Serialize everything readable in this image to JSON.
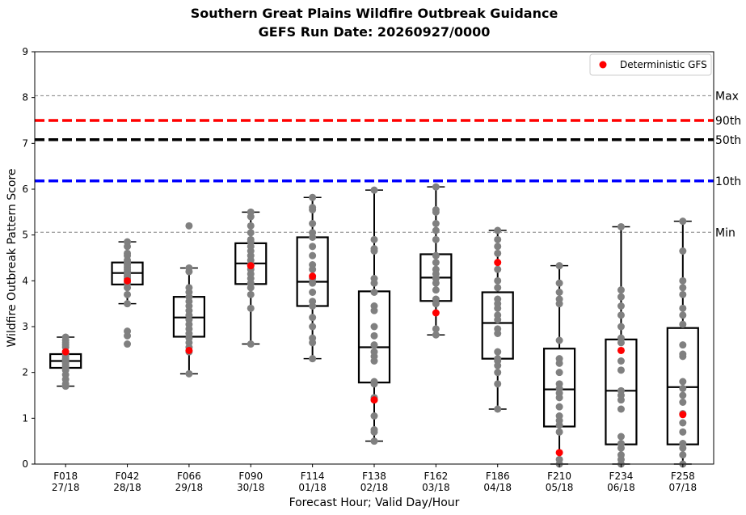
{
  "chart_data": {
    "type": "box",
    "title": "Southern Great Plains Wildfire Outbreak Guidance",
    "subtitle": "GEFS Run Date: 20260927/0000",
    "xlabel": "Forecast Hour; Valid Day/Hour",
    "ylabel": "Wildfire Outbreak Pattern Score",
    "ylim": [
      0,
      9
    ],
    "yticks": [
      0,
      1,
      2,
      3,
      4,
      5,
      6,
      7,
      8,
      9
    ],
    "categories": [
      {
        "hour": "F018",
        "valid": "27/18"
      },
      {
        "hour": "F042",
        "valid": "28/18"
      },
      {
        "hour": "F066",
        "valid": "29/18"
      },
      {
        "hour": "F090",
        "valid": "30/18"
      },
      {
        "hour": "F114",
        "valid": "01/18"
      },
      {
        "hour": "F138",
        "valid": "02/18"
      },
      {
        "hour": "F162",
        "valid": "03/18"
      },
      {
        "hour": "F186",
        "valid": "04/18"
      },
      {
        "hour": "F210",
        "valid": "05/18"
      },
      {
        "hour": "F234",
        "valid": "06/18"
      },
      {
        "hour": "F258",
        "valid": "07/18"
      }
    ],
    "boxes": [
      {
        "q1": 2.1,
        "median": 2.25,
        "q3": 2.4,
        "whisker_low": 1.7,
        "whisker_high": 2.77
      },
      {
        "q1": 3.92,
        "median": 4.17,
        "q3": 4.4,
        "whisker_low": 3.5,
        "whisker_high": 4.85
      },
      {
        "q1": 2.78,
        "median": 3.2,
        "q3": 3.65,
        "whisker_low": 1.97,
        "whisker_high": 4.28
      },
      {
        "q1": 3.93,
        "median": 4.38,
        "q3": 4.82,
        "whisker_low": 2.62,
        "whisker_high": 5.5
      },
      {
        "q1": 3.45,
        "median": 3.98,
        "q3": 4.95,
        "whisker_low": 2.3,
        "whisker_high": 5.82
      },
      {
        "q1": 1.78,
        "median": 2.55,
        "q3": 3.77,
        "whisker_low": 0.5,
        "whisker_high": 5.98
      },
      {
        "q1": 3.56,
        "median": 4.07,
        "q3": 4.58,
        "whisker_low": 2.82,
        "whisker_high": 6.05
      },
      {
        "q1": 2.3,
        "median": 3.08,
        "q3": 3.75,
        "whisker_low": 1.2,
        "whisker_high": 5.1
      },
      {
        "q1": 0.82,
        "median": 1.63,
        "q3": 2.52,
        "whisker_low": 0.0,
        "whisker_high": 4.33
      },
      {
        "q1": 0.43,
        "median": 1.6,
        "q3": 2.72,
        "whisker_low": 0.0,
        "whisker_high": 5.18
      },
      {
        "q1": 0.43,
        "median": 1.68,
        "q3": 2.97,
        "whisker_low": 0.0,
        "whisker_high": 5.3
      }
    ],
    "members": [
      [
        1.7,
        1.75,
        1.85,
        1.95,
        2.05,
        2.1,
        2.15,
        2.2,
        2.22,
        2.25,
        2.28,
        2.3,
        2.35,
        2.4,
        2.45,
        2.55,
        2.6,
        2.65,
        2.7,
        2.77
      ],
      [
        2.62,
        2.8,
        2.9,
        3.5,
        3.7,
        3.85,
        3.95,
        4.05,
        4.1,
        4.15,
        4.2,
        4.25,
        4.3,
        4.35,
        4.4,
        4.45,
        4.55,
        4.6,
        4.75,
        4.85
      ],
      [
        1.97,
        2.45,
        2.55,
        2.65,
        2.75,
        2.85,
        2.95,
        3.05,
        3.15,
        3.25,
        3.35,
        3.45,
        3.55,
        3.65,
        3.75,
        3.85,
        4.2,
        4.28,
        5.2
      ],
      [
        2.62,
        3.4,
        3.7,
        3.85,
        3.95,
        4.05,
        4.15,
        4.25,
        4.35,
        4.45,
        4.55,
        4.65,
        4.75,
        4.85,
        4.9,
        5.05,
        5.2,
        5.4,
        5.5
      ],
      [
        2.3,
        2.65,
        2.75,
        3.0,
        3.2,
        3.45,
        3.55,
        3.75,
        3.95,
        4.05,
        4.25,
        4.35,
        4.55,
        4.75,
        4.95,
        5.05,
        5.25,
        5.55,
        5.6,
        5.82
      ],
      [
        0.5,
        0.7,
        0.75,
        1.05,
        1.4,
        1.45,
        1.75,
        1.8,
        2.25,
        2.35,
        2.45,
        2.6,
        2.8,
        3.0,
        3.35,
        3.45,
        3.75,
        3.95,
        4.05,
        4.65,
        4.7,
        4.9,
        5.98
      ],
      [
        2.82,
        2.95,
        3.5,
        3.6,
        3.8,
        3.95,
        4.05,
        4.15,
        4.25,
        4.4,
        4.55,
        4.9,
        5.1,
        5.25,
        5.5,
        5.55,
        6.05
      ],
      [
        1.2,
        1.75,
        2.0,
        2.15,
        2.25,
        2.3,
        2.45,
        2.85,
        2.95,
        3.15,
        3.25,
        3.4,
        3.5,
        3.6,
        3.85,
        4.0,
        4.25,
        4.6,
        4.75,
        4.9,
        5.1
      ],
      [
        0.0,
        0.1,
        0.7,
        0.85,
        0.95,
        1.05,
        1.25,
        1.45,
        1.55,
        1.65,
        1.75,
        2.0,
        2.2,
        2.3,
        2.7,
        3.5,
        3.6,
        3.75,
        3.95,
        4.33
      ],
      [
        0.0,
        0.1,
        0.2,
        0.35,
        0.45,
        0.6,
        1.2,
        1.4,
        1.5,
        1.6,
        2.05,
        2.25,
        2.65,
        2.75,
        3.0,
        3.25,
        3.45,
        3.65,
        3.8,
        5.18
      ],
      [
        0.0,
        0.2,
        0.35,
        0.45,
        0.7,
        0.9,
        1.1,
        1.35,
        1.5,
        1.65,
        1.8,
        2.35,
        2.4,
        2.6,
        3.05,
        3.25,
        3.4,
        3.7,
        3.85,
        4.0,
        4.65,
        5.3
      ]
    ],
    "deterministic": [
      2.45,
      4.0,
      2.48,
      4.33,
      4.1,
      1.4,
      3.3,
      4.4,
      0.25,
      2.48,
      1.08
    ],
    "reference_lines": [
      {
        "label": "Max",
        "value": 8.04,
        "color": "#808080",
        "style": "dashed-thin"
      },
      {
        "label": "90th",
        "value": 7.5,
        "color": "#ff0000",
        "style": "dashed-thick"
      },
      {
        "label": "50th",
        "value": 7.08,
        "color": "#000000",
        "style": "dashed-thick"
      },
      {
        "label": "10th",
        "value": 6.18,
        "color": "#0000ff",
        "style": "dashed-thick"
      },
      {
        "label": "Min",
        "value": 5.06,
        "color": "#808080",
        "style": "dashed-thin"
      }
    ],
    "legend": {
      "label": "Deterministic GFS",
      "position": "top-right",
      "marker_color": "#ff0000"
    },
    "member_color": "#808080",
    "grid": false
  }
}
